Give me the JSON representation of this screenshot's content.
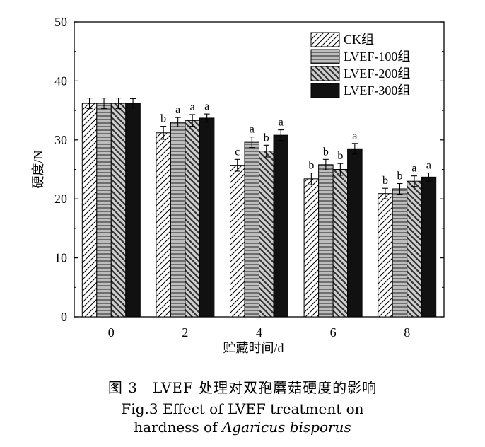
{
  "chart_data": {
    "type": "bar",
    "xlabel": "贮藏时间/d",
    "ylabel": "硬度/N",
    "ylim": [
      0,
      50
    ],
    "yticks": [
      0,
      10,
      20,
      30,
      40,
      50
    ],
    "categories": [
      "0",
      "2",
      "4",
      "6",
      "8"
    ],
    "legend_position": "top-right",
    "series": [
      {
        "name": "CK组",
        "pattern": "forward-diagonal",
        "color": "#ffffff",
        "values": [
          36.2,
          31.2,
          25.7,
          23.4,
          20.9
        ],
        "errors": [
          0.9,
          1.1,
          1.0,
          1.0,
          0.9
        ],
        "labels": [
          "",
          "b",
          "c",
          "b",
          "b"
        ]
      },
      {
        "name": "LVEF-100组",
        "pattern": "horizontal-lines",
        "color": "#b8b8b8",
        "values": [
          36.2,
          33.0,
          29.6,
          25.8,
          21.7
        ],
        "errors": [
          0.9,
          0.8,
          0.9,
          0.9,
          0.9
        ],
        "labels": [
          "",
          "a",
          "a",
          "b",
          "b"
        ]
      },
      {
        "name": "LVEF-200组",
        "pattern": "backward-diagonal",
        "color": "#6a6a6a",
        "values": [
          36.2,
          33.3,
          28.1,
          25.0,
          23.0
        ],
        "errors": [
          0.9,
          1.0,
          1.0,
          1.0,
          0.9
        ],
        "labels": [
          "",
          "a",
          "b",
          "b",
          "a"
        ]
      },
      {
        "name": "LVEF-300组",
        "pattern": "solid",
        "color": "#111111",
        "values": [
          36.2,
          33.7,
          30.8,
          28.5,
          23.7
        ],
        "errors": [
          0.8,
          0.7,
          0.9,
          0.9,
          0.7
        ],
        "labels": [
          "",
          "a",
          "a",
          "a",
          "a"
        ]
      }
    ]
  },
  "caption": {
    "cn": "图 3　LVEF 处理对双孢蘑菇硬度的影响",
    "en_line1": "Fig.3 Effect of LVEF treatment on",
    "en_line2_prefix": "hardness of ",
    "en_line2_italic": "Agaricus bisporus"
  }
}
